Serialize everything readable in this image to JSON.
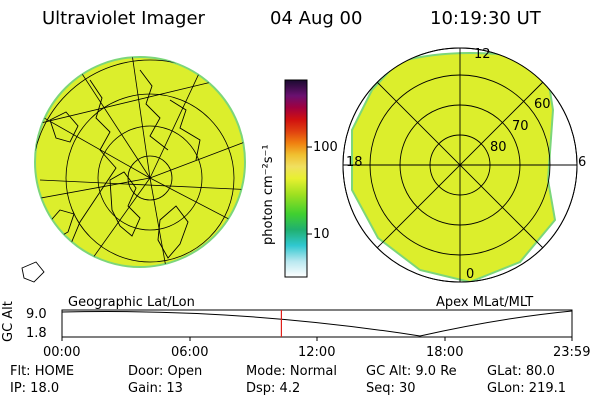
{
  "header": {
    "instrument": "Ultraviolet Imager",
    "date": "04 Aug 00",
    "time": "10:19:30 UT"
  },
  "left_panel": {
    "caption": "Geographic Lat/Lon"
  },
  "right_panel": {
    "caption": "Apex MLat/MLT",
    "mlt_labels": [
      "12",
      "18",
      "6",
      "0"
    ],
    "mlat_labels": [
      "60",
      "70",
      "80"
    ]
  },
  "colorbar": {
    "label": "photon cm⁻²s⁻¹",
    "tick_labels": [
      "100",
      "10"
    ]
  },
  "altitude_plot": {
    "ylabel": "GC Alt",
    "y_ticks": [
      "9.0",
      "1.8"
    ],
    "x_ticks": [
      "00:00",
      "06:00",
      "12:00",
      "18:00",
      "23:59"
    ],
    "marker_time_hours": 10.325,
    "marker_color": "#e0201a"
  },
  "info": {
    "row1": {
      "flt": "Flt: HOME",
      "door": "Door: Open",
      "mode": "Mode: Normal",
      "gcalt": "GC Alt: 9.0 Re",
      "glat": "GLat:  80.0"
    },
    "row2": {
      "ip": "IP: 18.0",
      "gain": "Gain: 13",
      "dsp": "Dsp:     4.2",
      "seq": "Seq: 30",
      "glon": "GLon: 219.1"
    }
  },
  "colors": {
    "image_fill": "#dcee2c",
    "image_edge": "#7cd67a"
  }
}
